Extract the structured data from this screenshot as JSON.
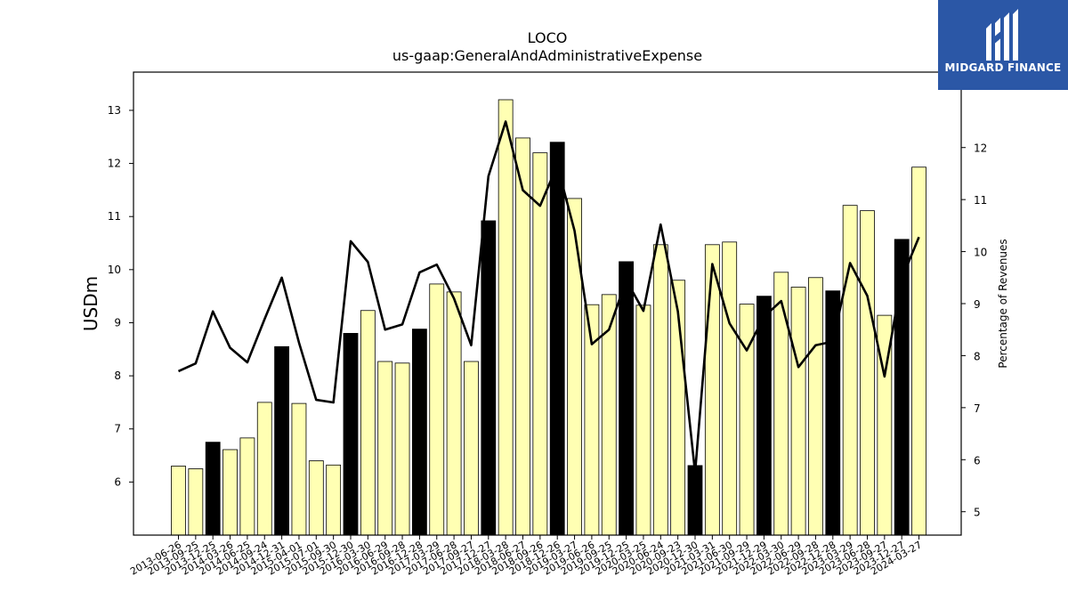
{
  "logo": {
    "text": "MIDGARD FINANCE",
    "icon": "midgard-m-logo-icon",
    "color": "#2b57a6"
  },
  "chart_data": {
    "type": "bar",
    "title": "LOCO",
    "subtitle": "us-gaap:GeneralAndAdministrativeExpense",
    "ylabel": "USDm",
    "y2label": "Percentage of Revenues",
    "ylim": [
      5.0,
      13.72
    ],
    "y2lim": [
      4.55,
      13.45
    ],
    "yticks": [
      6,
      7,
      8,
      9,
      10,
      11,
      12,
      13
    ],
    "y2ticks": [
      5,
      6,
      7,
      8,
      9,
      10,
      11,
      12
    ],
    "bar_colors": {
      "quarter": "#ffffb3",
      "fiscal_year_end": "#000000"
    },
    "categories": [
      "2013-06-26",
      "2013-09-25",
      "2013-12-25",
      "2014-03-26",
      "2014-06-25",
      "2014-09-24",
      "2014-12-31",
      "2015-04-01",
      "2015-07-01",
      "2015-09-30",
      "2015-12-30",
      "2016-03-30",
      "2016-06-29",
      "2016-09-28",
      "2016-12-28",
      "2017-03-29",
      "2017-06-28",
      "2017-09-27",
      "2017-12-27",
      "2018-03-28",
      "2018-06-27",
      "2018-09-26",
      "2018-12-26",
      "2019-03-27",
      "2019-06-26",
      "2019-09-25",
      "2019-12-25",
      "2020-03-25",
      "2020-06-24",
      "2020-09-23",
      "2020-12-30",
      "2021-03-31",
      "2021-06-30",
      "2021-09-29",
      "2021-12-29",
      "2022-03-30",
      "2022-06-29",
      "2022-09-28",
      "2022-12-28",
      "2023-03-29",
      "2023-06-28",
      "2023-09-27",
      "2023-12-27",
      "2024-03-27"
    ],
    "series": [
      {
        "kind": "bar",
        "axis": "left",
        "values": [
          6.3,
          6.25,
          6.75,
          6.61,
          6.83,
          7.5,
          8.55,
          7.48,
          6.4,
          6.32,
          8.8,
          9.23,
          8.27,
          8.24,
          8.88,
          9.73,
          9.58,
          8.27,
          10.92,
          13.2,
          12.48,
          12.2,
          12.4,
          11.34,
          9.34,
          9.53,
          10.15,
          9.33,
          10.47,
          9.8,
          6.31,
          10.47,
          10.52,
          9.35,
          9.5,
          9.95,
          9.67,
          9.85,
          9.6,
          11.21,
          11.11,
          9.14,
          10.57,
          11.93
        ],
        "fiscal_year_end": [
          false,
          false,
          true,
          false,
          false,
          false,
          true,
          false,
          false,
          false,
          true,
          false,
          false,
          false,
          true,
          false,
          false,
          false,
          true,
          false,
          false,
          false,
          true,
          false,
          false,
          false,
          true,
          false,
          false,
          false,
          true,
          false,
          false,
          false,
          true,
          false,
          false,
          false,
          true,
          false,
          false,
          false,
          true,
          false
        ]
      },
      {
        "kind": "line",
        "axis": "right",
        "values": [
          7.7,
          7.85,
          8.85,
          8.15,
          7.87,
          8.7,
          9.5,
          8.25,
          7.15,
          7.1,
          10.2,
          9.8,
          8.5,
          8.6,
          9.6,
          9.75,
          9.1,
          8.2,
          11.45,
          12.5,
          11.18,
          10.88,
          11.66,
          10.4,
          8.22,
          8.5,
          9.45,
          8.86,
          10.52,
          8.85,
          5.75,
          9.76,
          8.62,
          8.1,
          8.75,
          9.05,
          7.78,
          8.2,
          8.27,
          9.78,
          9.15,
          7.6,
          9.48,
          10.28
        ]
      }
    ]
  }
}
